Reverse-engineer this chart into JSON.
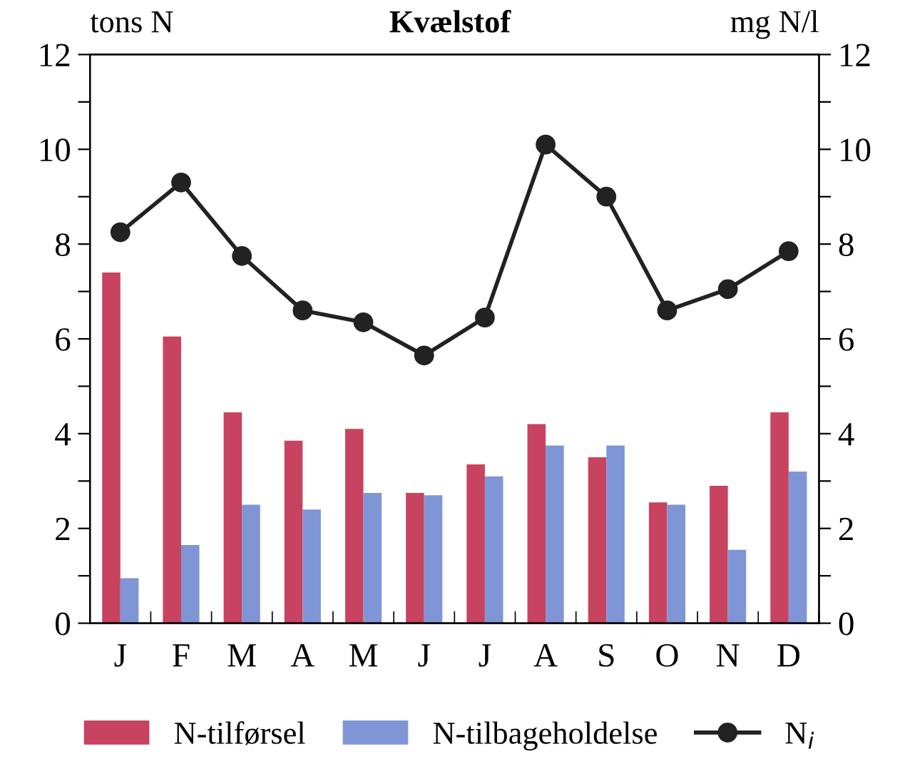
{
  "chart_data": {
    "type": "bar",
    "title": "Kvælstof",
    "ylabel": "tons N",
    "y2label": "mg N/l",
    "categories": [
      "J",
      "F",
      "M",
      "A",
      "M",
      "J",
      "J",
      "A",
      "S",
      "O",
      "N",
      "D"
    ],
    "series": [
      {
        "name": "N-tilførsel",
        "color": "#c8435f",
        "values": [
          7.4,
          6.05,
          4.45,
          3.85,
          4.1,
          2.75,
          3.35,
          4.2,
          3.5,
          2.55,
          2.9,
          4.45
        ]
      },
      {
        "name": "N-tilbageholdelse",
        "color": "#7f95d6",
        "values": [
          0.95,
          1.65,
          2.5,
          2.4,
          2.75,
          2.7,
          3.1,
          3.75,
          3.75,
          2.5,
          1.55,
          3.2
        ]
      },
      {
        "name": "N$_{i}$",
        "type": "line",
        "color": "#222222",
        "marker": "circle",
        "values": [
          8.25,
          9.3,
          7.75,
          6.6,
          6.35,
          5.65,
          6.45,
          10.1,
          9.0,
          6.6,
          7.05,
          7.85
        ]
      }
    ],
    "ylim": [
      0,
      12
    ],
    "yticks": [
      0,
      {
        "value": 1,
        "label": null
      },
      2,
      {
        "value": 3,
        "label": null
      },
      4,
      {
        "value": 5,
        "label": null
      },
      6,
      {
        "value": 7,
        "label": null
      },
      8,
      {
        "value": 9,
        "label": null
      },
      10,
      {
        "value": 11,
        "label": null
      },
      12
    ],
    "y2lim": [
      0,
      12
    ],
    "y2ticks": [
      0,
      {
        "value": 1,
        "label": null
      },
      2,
      {
        "value": 3,
        "label": null
      },
      4,
      {
        "value": 5,
        "label": null
      },
      6,
      {
        "value": 7,
        "label": null
      },
      8,
      {
        "value": 9,
        "label": null
      },
      10,
      {
        "value": 11,
        "label": null
      },
      12
    ],
    "legend": "bottom",
    "grid": false
  }
}
